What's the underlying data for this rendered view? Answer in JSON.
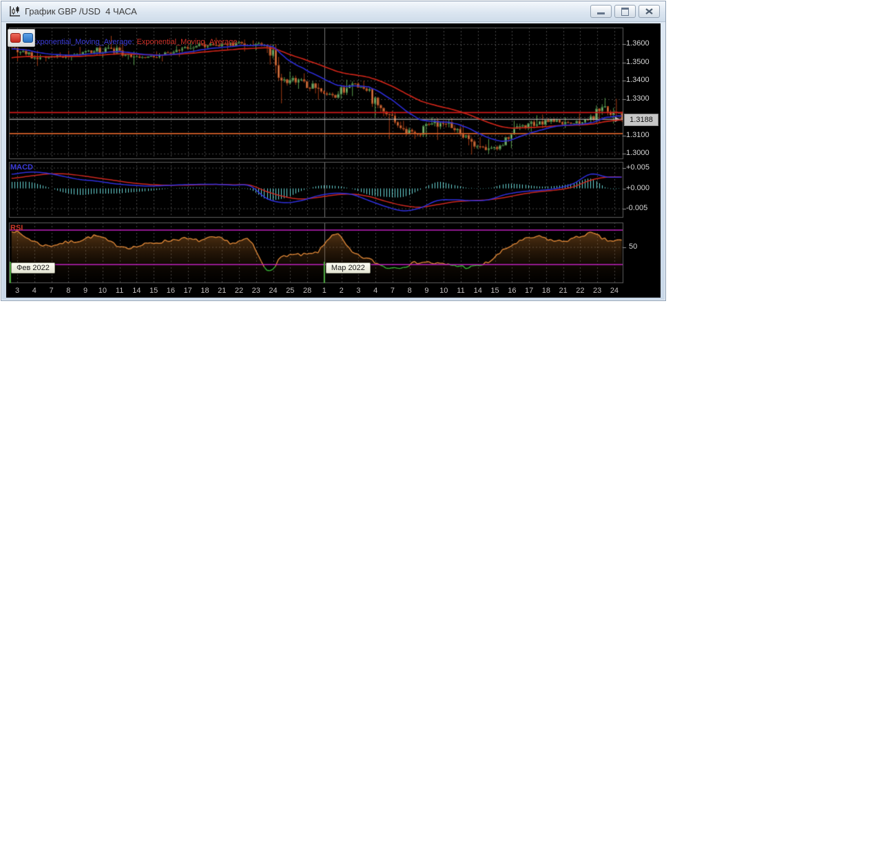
{
  "window": {
    "title": "График GBP /USD  4 ЧАСА",
    "controls": [
      {
        "icon": "minimize-icon"
      },
      {
        "icon": "restore-icon"
      },
      {
        "icon": "close-icon"
      }
    ]
  },
  "toolbox": {
    "buttons": [
      {
        "name": "red-marker-button",
        "color": "#c62820"
      },
      {
        "name": "blue-marker-button",
        "color": "#2a72c2"
      }
    ]
  },
  "legend": {
    "ma_fast": "Exponential_Moving_Average:",
    "ma_slow": "Exponential_Moving_Average",
    "fast_color": "#3b3bd8",
    "slow_color": "#d03028"
  },
  "panes": {
    "macd_label": "MACD",
    "rsi_label": "RSI"
  },
  "axes": {
    "price_labels": [
      {
        "text": "1.3600",
        "price": 1.36
      },
      {
        "text": "1.3500",
        "price": 1.35
      },
      {
        "text": "1.3400",
        "price": 1.34
      },
      {
        "text": "1.3300",
        "price": 1.33
      },
      {
        "text": "1.3100",
        "price": 1.31
      },
      {
        "text": "1.3000",
        "price": 1.3
      }
    ],
    "macd_labels": [
      {
        "text": "+0.005",
        "value": 0.005
      },
      {
        "text": "+0.000",
        "value": 0.0
      },
      {
        "text": "-0.005",
        "value": -0.005
      }
    ],
    "rsi_labels": [
      {
        "text": "50",
        "value": 50
      }
    ],
    "current_price": "1.3188"
  },
  "months": [
    {
      "label": "Фев 2022",
      "day_index": 0
    },
    {
      "label": "Мар 2022",
      "day_index": 18
    }
  ],
  "chart_data": {
    "type": "candlestick",
    "symbol": "GBP/USD",
    "timeframe": "4H",
    "categories": [
      "3",
      "4",
      "7",
      "8",
      "9",
      "10",
      "11",
      "14",
      "15",
      "16",
      "17",
      "18",
      "21",
      "22",
      "23",
      "24",
      "25",
      "28",
      "1",
      "2",
      "3",
      "4",
      "7",
      "8",
      "9",
      "10",
      "11",
      "14",
      "15",
      "16",
      "17",
      "18",
      "21",
      "22",
      "23",
      "24"
    ],
    "daily_ohlc": [
      [
        1.3585,
        1.3605,
        1.3505,
        1.3545
      ],
      [
        1.3545,
        1.3565,
        1.348,
        1.353
      ],
      [
        1.353,
        1.3555,
        1.3505,
        1.3535
      ],
      [
        1.3535,
        1.3565,
        1.351,
        1.3545
      ],
      [
        1.3545,
        1.3585,
        1.353,
        1.356
      ],
      [
        1.356,
        1.3645,
        1.3525,
        1.3575
      ],
      [
        1.3575,
        1.3605,
        1.3515,
        1.3545
      ],
      [
        1.3545,
        1.356,
        1.3485,
        1.3525
      ],
      [
        1.3525,
        1.356,
        1.3505,
        1.354
      ],
      [
        1.354,
        1.359,
        1.353,
        1.3565
      ],
      [
        1.3565,
        1.362,
        1.3555,
        1.359
      ],
      [
        1.359,
        1.3615,
        1.356,
        1.3595
      ],
      [
        1.3595,
        1.3635,
        1.357,
        1.3605
      ],
      [
        1.3605,
        1.3625,
        1.356,
        1.359
      ],
      [
        1.359,
        1.362,
        1.3565,
        1.3595
      ],
      [
        1.3595,
        1.36,
        1.3275,
        1.34
      ],
      [
        1.34,
        1.345,
        1.3355,
        1.3405
      ],
      [
        1.3405,
        1.344,
        1.333,
        1.336
      ],
      [
        1.336,
        1.3385,
        1.3295,
        1.332
      ],
      [
        1.332,
        1.3405,
        1.33,
        1.3375
      ],
      [
        1.3375,
        1.34,
        1.3315,
        1.3345
      ],
      [
        1.3345,
        1.336,
        1.32,
        1.323
      ],
      [
        1.323,
        1.3235,
        1.308,
        1.314
      ],
      [
        1.314,
        1.318,
        1.308,
        1.3105
      ],
      [
        1.3105,
        1.32,
        1.309,
        1.318
      ],
      [
        1.318,
        1.3195,
        1.3075,
        1.314
      ],
      [
        1.314,
        1.316,
        1.3045,
        1.308
      ],
      [
        1.308,
        1.309,
        1.2995,
        1.302
      ],
      [
        1.302,
        1.308,
        1.3,
        1.3045
      ],
      [
        1.3045,
        1.318,
        1.303,
        1.315
      ],
      [
        1.315,
        1.321,
        1.312,
        1.316
      ],
      [
        1.316,
        1.3215,
        1.314,
        1.3175
      ],
      [
        1.3175,
        1.32,
        1.314,
        1.3165
      ],
      [
        1.3165,
        1.322,
        1.315,
        1.3185
      ],
      [
        1.3185,
        1.3305,
        1.317,
        1.326
      ],
      [
        1.326,
        1.33,
        1.3165,
        1.3188
      ]
    ],
    "macd": {
      "macd": [
        0.0035,
        0.004,
        0.0038,
        0.003,
        0.0022,
        0.0018,
        0.0012,
        0.0008,
        0.0006,
        0.0007,
        0.0009,
        0.001,
        0.001,
        0.0008,
        0.0006,
        -0.0025,
        -0.0035,
        -0.003,
        -0.0018,
        -0.0012,
        -0.0015,
        -0.003,
        -0.0045,
        -0.0055,
        -0.0048,
        -0.003,
        -0.0028,
        -0.003,
        -0.0028,
        -0.0015,
        -0.0008,
        -0.0005,
        0.0,
        0.0012,
        0.0035,
        0.0028
      ],
      "signal": [
        0.0025,
        0.003,
        0.0035,
        0.0036,
        0.0032,
        0.0026,
        0.002,
        0.0014,
        0.001,
        0.0008,
        0.0008,
        0.0009,
        0.001,
        0.0009,
        0.0008,
        -0.0008,
        -0.002,
        -0.0026,
        -0.0022,
        -0.0016,
        -0.0014,
        -0.002,
        -0.0032,
        -0.0042,
        -0.0046,
        -0.004,
        -0.0033,
        -0.003,
        -0.0028,
        -0.0022,
        -0.0014,
        -0.0008,
        -0.0004,
        0.0004,
        0.002,
        0.0028
      ]
    },
    "rsi": [
      70,
      60,
      52,
      55,
      58,
      63,
      54,
      50,
      54,
      57,
      60,
      58,
      61,
      55,
      57,
      24,
      40,
      41,
      45,
      66,
      44,
      36,
      27,
      28,
      33,
      31,
      29,
      27,
      33,
      48,
      58,
      62,
      57,
      60,
      66,
      58
    ],
    "levels": {
      "resistance": 1.3225,
      "support": 1.311,
      "last_price": 1.3188,
      "rsi_upper": 70,
      "rsi_lower": 30
    },
    "price_axis_range": [
      1.2975,
      1.369
    ],
    "macd_axis_range": [
      -0.0068,
      0.0068
    ],
    "rsi_axis_range": [
      0,
      100
    ],
    "colors": {
      "bull_body": "#b2dca2",
      "bull_edge": "#2f7030",
      "bull_wick": "#5aa04e",
      "bear_body": "#dc9a62",
      "bear_edge": "#a63c14",
      "bear_wick": "#a63c14",
      "ema_fast": "#2b2bd0",
      "ema_slow": "#cc2418",
      "macd_line": "#3030e0",
      "signal_line": "#d02820",
      "histogram": "#6adada",
      "rsi_line": "#e08838",
      "rsi_oversold": "#38b838",
      "rsi_levels": "#c020c0",
      "resistance_line": "#d41a1a",
      "support_line": "#d8622a",
      "price_line": "#d8d8d8",
      "grid": "#4a4a4a",
      "pane_border": "#606060",
      "month_tick": "#4aa83c"
    }
  }
}
